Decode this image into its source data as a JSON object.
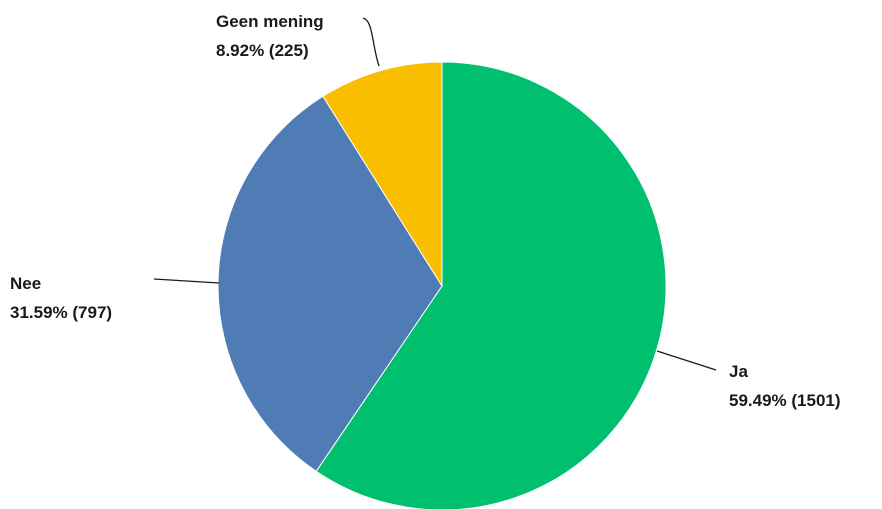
{
  "chart_data": {
    "type": "pie",
    "title": "",
    "start_angle_deg": 0,
    "direction": "clockwise",
    "slices": [
      {
        "name": "Ja",
        "value": 1501,
        "percent_label": "59.49% (1501)",
        "color": "#00bf6f"
      },
      {
        "name": "Nee",
        "value": 797,
        "percent_label": "31.59% (797)",
        "color": "#507cb6"
      },
      {
        "name": "Geen mening",
        "value": 225,
        "percent_label": "8.92% (225)",
        "color": "#f9be00"
      }
    ]
  }
}
